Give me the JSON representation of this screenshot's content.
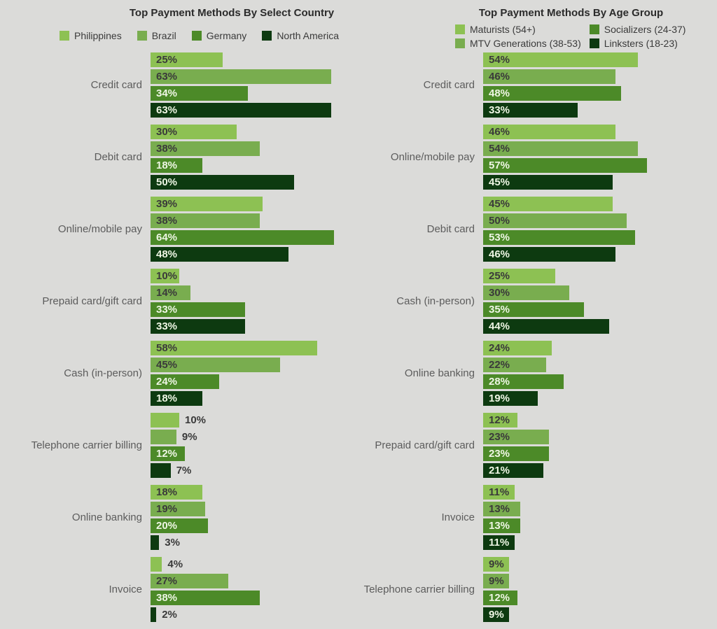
{
  "page": {
    "background": "#dbdbd9"
  },
  "text_colors": {
    "on_light_bar": "#3a3a3a",
    "on_dark_bar": "#eef6e4",
    "outside_label": "#3a3a3a",
    "category_label": "#5c5c5c",
    "title": "#2b2b2b"
  },
  "chart_data": [
    {
      "type": "bar",
      "orientation": "horizontal",
      "title": "Top Payment Methods By Select Country",
      "value_suffix": "%",
      "axis": {
        "xlim": [
          0,
          70
        ],
        "grid": false,
        "value_labels": "on-bar"
      },
      "legend_position": "top-row",
      "categories": [
        "Credit card",
        "Debit card",
        "Online/mobile pay",
        "Prepaid card/gift card",
        "Cash (in-person)",
        "Telephone carrier billing",
        "Online banking",
        "Invoice"
      ],
      "series": [
        {
          "name": "Philippines",
          "color": "#8dc153",
          "label_color": "#3a3a3a",
          "values": [
            25,
            30,
            39,
            10,
            58,
            10,
            18,
            4
          ]
        },
        {
          "name": "Brazil",
          "color": "#79ad4f",
          "label_color": "#3a3a3a",
          "values": [
            63,
            38,
            38,
            14,
            45,
            9,
            19,
            27
          ]
        },
        {
          "name": "Germany",
          "color": "#4c8a28",
          "label_color": "#eef6e4",
          "values": [
            34,
            18,
            64,
            33,
            24,
            12,
            20,
            38
          ]
        },
        {
          "name": "North America",
          "color": "#0d3a10",
          "label_color": "#eef6e4",
          "values": [
            63,
            50,
            48,
            33,
            18,
            7,
            3,
            2
          ]
        }
      ],
      "labels_outside": {
        "5": [
          0,
          1,
          3
        ],
        "6": [
          3
        ],
        "7": [
          0,
          3
        ]
      }
    },
    {
      "type": "bar",
      "orientation": "horizontal",
      "title": "Top Payment Methods By Age Group",
      "value_suffix": "%",
      "axis": {
        "xlim": [
          0,
          70
        ],
        "grid": false,
        "value_labels": "on-bar"
      },
      "legend_position": "top-grid-2x2",
      "categories": [
        "Credit card",
        "Online/mobile pay",
        "Debit card",
        "Cash (in-person)",
        "Online banking",
        "Prepaid card/gift card",
        "Invoice",
        "Telephone carrier billing"
      ],
      "series": [
        {
          "name": "Maturists (54+)",
          "color": "#8dc153",
          "label_color": "#3a3a3a",
          "values": [
            54,
            46,
            45,
            25,
            24,
            12,
            11,
            9
          ]
        },
        {
          "name": "MTV Generations (38-53)",
          "color": "#79ad4f",
          "label_color": "#3a3a3a",
          "values": [
            46,
            54,
            50,
            30,
            22,
            23,
            13,
            9
          ]
        },
        {
          "name": "Socializers (24-37)",
          "color": "#4c8a28",
          "label_color": "#eef6e4",
          "values": [
            48,
            57,
            53,
            35,
            28,
            23,
            13,
            12
          ]
        },
        {
          "name": "Linksters (18-23)",
          "color": "#0d3a10",
          "label_color": "#eef6e4",
          "values": [
            33,
            45,
            46,
            44,
            19,
            21,
            11,
            9
          ]
        }
      ],
      "labels_outside": {}
    }
  ]
}
